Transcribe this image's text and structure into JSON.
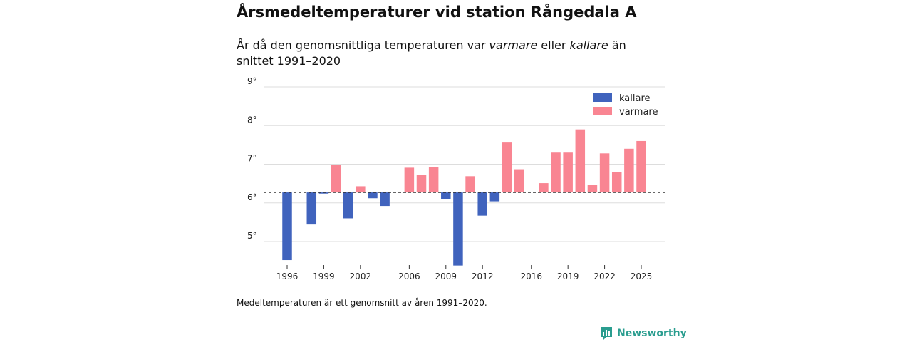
{
  "header": {
    "title": "Årsmedeltemperaturer vid station Rångedala A",
    "subtitle_part1": "År då den genomsnittliga temperaturen var ",
    "subtitle_warm": "varmare",
    "subtitle_part2": " eller ",
    "subtitle_cold": "kallare",
    "subtitle_part3": " än snittet 1991–2020"
  },
  "footer": {
    "note": "Medeltemperaturen är ett genomsnitt av åren 1991–2020.",
    "brand": "Newsworthy"
  },
  "colors": {
    "cold": "#4063bd",
    "warm": "#f98592",
    "grid": "#dddddd",
    "baseline": "#333333",
    "brand": "#2a9d8f"
  },
  "chart_data": {
    "type": "bar",
    "title": "Årsmedeltemperaturer vid station Rångedala A",
    "baseline": 6.27,
    "ylim": [
      4.4,
      9.0
    ],
    "yticks": [
      5,
      6,
      7,
      8,
      9
    ],
    "ytick_labels": [
      "5°",
      "6°",
      "7°",
      "8°",
      "9°"
    ],
    "xlim": [
      1994.5,
      2026.5
    ],
    "xticks": [
      1996,
      1999,
      2002,
      2006,
      2009,
      2012,
      2016,
      2019,
      2022,
      2025
    ],
    "legend": [
      {
        "key": "cold",
        "label": "kallare"
      },
      {
        "key": "warm",
        "label": "varmare"
      }
    ],
    "legend_position": "top-right",
    "years": [
      1996,
      1998,
      1999,
      2000,
      2001,
      2002,
      2003,
      2004,
      2006,
      2007,
      2008,
      2009,
      2010,
      2011,
      2012,
      2013,
      2014,
      2015,
      2017,
      2018,
      2019,
      2020,
      2021,
      2022,
      2023,
      2024,
      2025
    ],
    "values": [
      4.52,
      5.44,
      6.24,
      6.98,
      5.6,
      6.43,
      6.12,
      5.92,
      6.91,
      6.73,
      6.92,
      6.1,
      4.38,
      6.69,
      5.67,
      6.04,
      7.56,
      6.87,
      6.51,
      7.3,
      7.3,
      7.9,
      6.47,
      7.28,
      6.8,
      7.4,
      7.6
    ]
  }
}
